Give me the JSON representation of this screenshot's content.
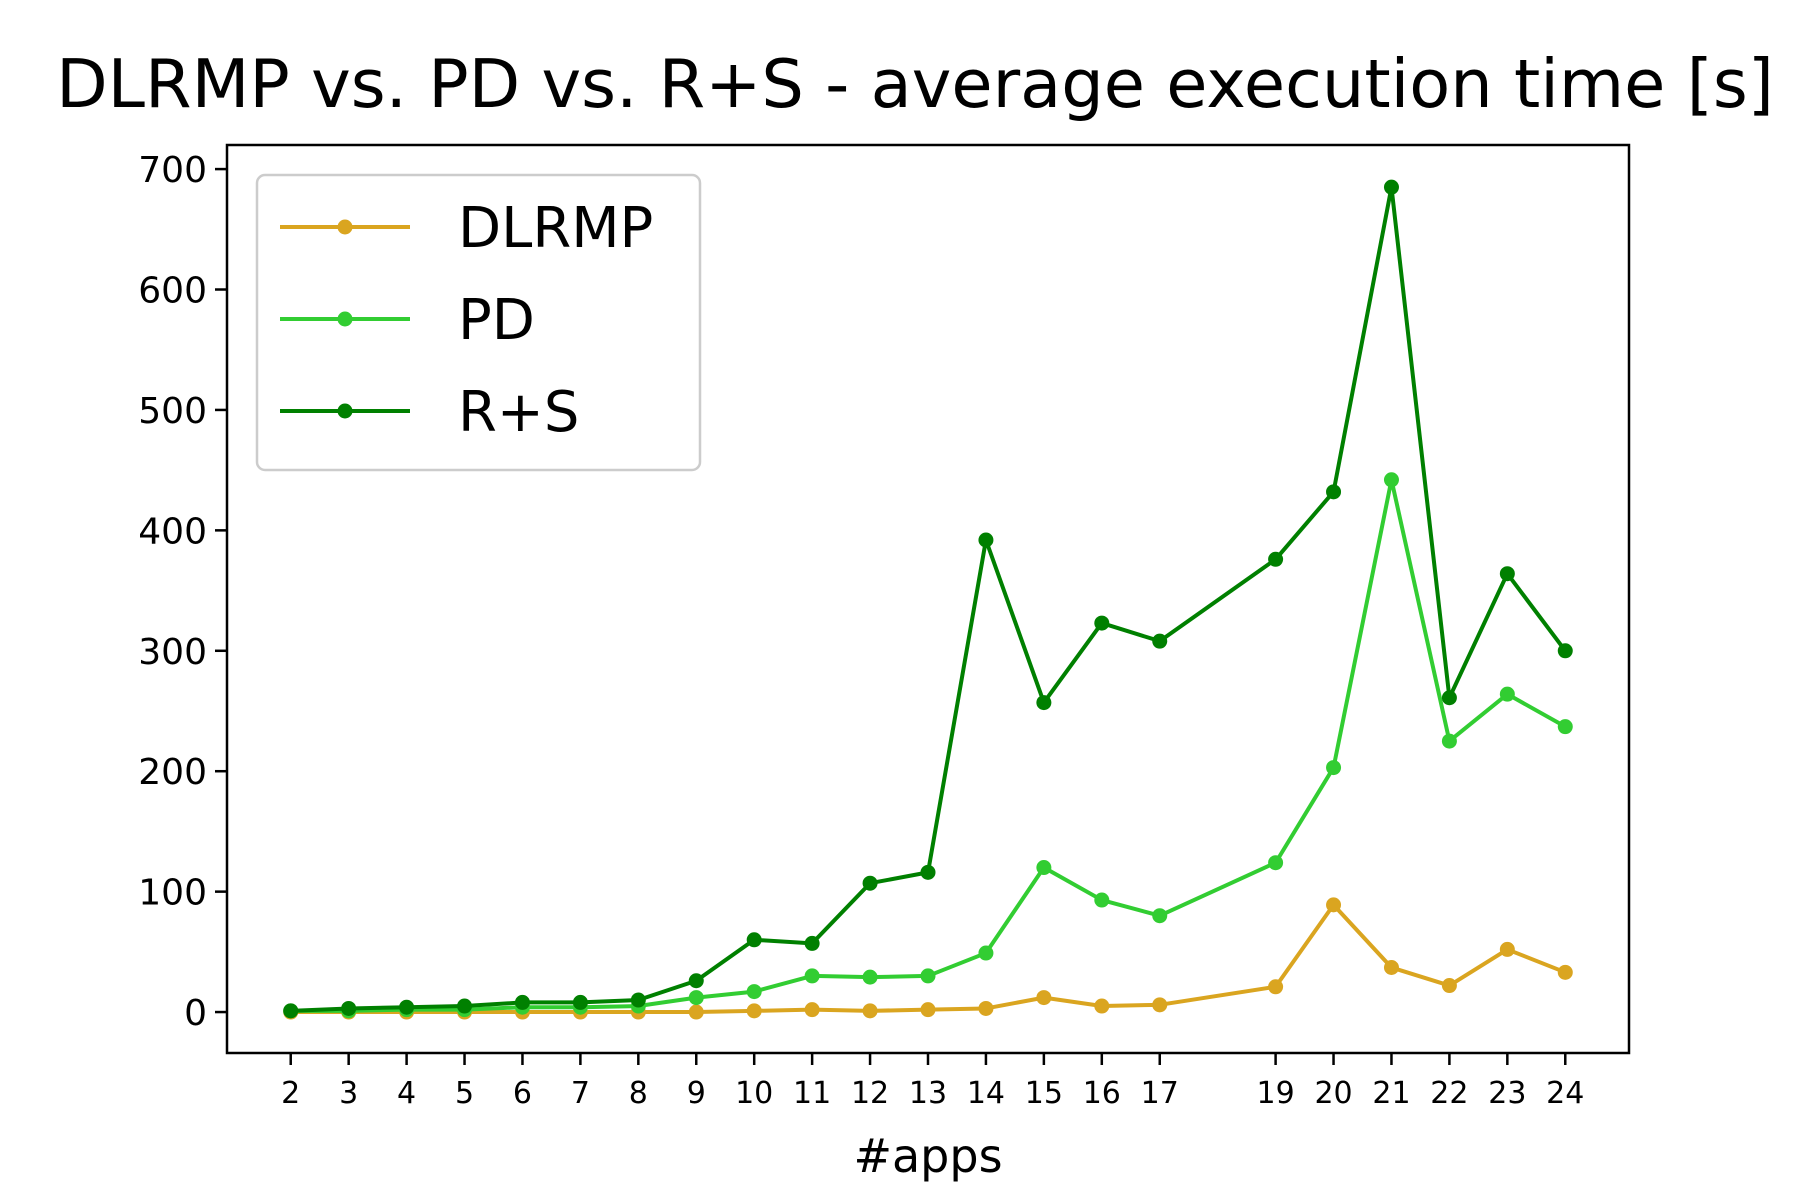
{
  "chart_data": {
    "type": "line",
    "title": "DLRMP vs. PD vs. R+S - average execution time [s]",
    "xlabel": "#apps",
    "ylabel": "",
    "x": [
      2,
      3,
      4,
      5,
      6,
      7,
      8,
      9,
      10,
      11,
      12,
      13,
      14,
      15,
      16,
      17,
      19,
      20,
      21,
      22,
      23,
      24
    ],
    "xticks": [
      2,
      3,
      4,
      5,
      6,
      7,
      8,
      9,
      10,
      11,
      12,
      13,
      14,
      15,
      16,
      17,
      19,
      20,
      21,
      22,
      23,
      24
    ],
    "yticks": [
      0,
      100,
      200,
      300,
      400,
      500,
      600,
      700
    ],
    "xlim": [
      0.9,
      25.1
    ],
    "ylim": [
      -34,
      720
    ],
    "grid": false,
    "legend_position": "top-left",
    "series": [
      {
        "name": "DLRMP",
        "color": "#DAA520",
        "values": [
          0,
          0,
          0,
          0,
          0,
          0,
          0,
          0,
          1,
          2,
          1,
          2,
          3,
          12,
          5,
          6,
          21,
          89,
          37,
          22,
          52,
          33
        ]
      },
      {
        "name": "PD",
        "color": "#32CD32",
        "values": [
          1,
          1,
          2,
          2,
          4,
          4,
          5,
          12,
          17,
          30,
          29,
          30,
          49,
          120,
          93,
          80,
          124,
          203,
          442,
          225,
          264,
          237
        ]
      },
      {
        "name": "R+S",
        "color": "#008000",
        "values": [
          1,
          3,
          4,
          5,
          8,
          8,
          10,
          26,
          60,
          57,
          107,
          116,
          392,
          257,
          323,
          308,
          376,
          432,
          685,
          261,
          364,
          300
        ]
      }
    ]
  }
}
